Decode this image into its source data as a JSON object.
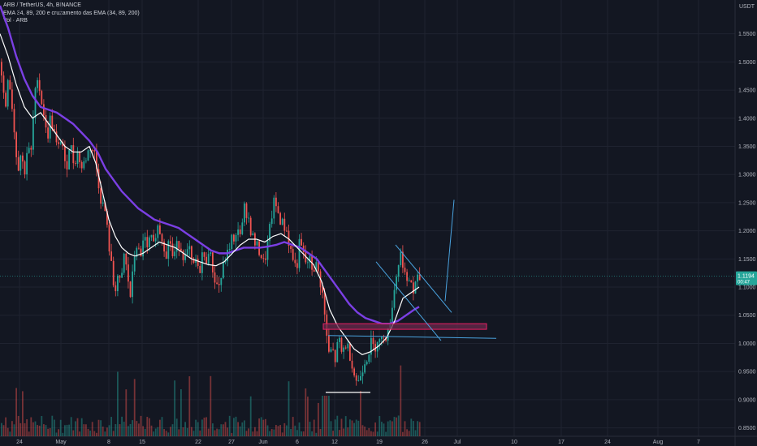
{
  "legend": {
    "symbol_line": "ARB / TetherUS, 4h, BINANCE",
    "indicator_line": "EMA 34, 89, 200 e cruzamento das EMA (34, 89, 200)",
    "volume_line": "Vol · ARB"
  },
  "price_axis": {
    "currency": "USDT",
    "ticks": [
      "1.5500",
      "1.5000",
      "1.4500",
      "1.4000",
      "1.3500",
      "1.3000",
      "1.2500",
      "1.2000",
      "1.1500",
      "1.1000",
      "1.0500",
      "1.0000",
      "0.9500",
      "0.9000",
      "0.8500"
    ],
    "last_price": "1.1194",
    "countdown": "00:47"
  },
  "time_axis": {
    "ticks": [
      "24",
      "May",
      "8",
      "15",
      "22",
      "27",
      "Jun",
      "6",
      "12",
      "19",
      "26",
      "Jul",
      "10",
      "17",
      "24",
      "Aug",
      "7"
    ]
  },
  "colors": {
    "background": "#131722",
    "up": "#26a69a",
    "down": "#ef5350",
    "ema_fast": "#ffffff",
    "ema_slow": "#7b3fe4",
    "drawing_line": "#4aa3df",
    "zone_border": "#e91e63",
    "zone_fill": "#6a2a4c",
    "support_line": "#ffffff",
    "last_price_bg": "#26a69a"
  },
  "chart_data": {
    "type": "candlestick",
    "title": "ARB / TetherUS, 4h, BINANCE",
    "ylim": [
      0.835,
      1.61
    ],
    "y_ticks": [
      1.55,
      1.5,
      1.45,
      1.4,
      1.35,
      1.3,
      1.25,
      1.2,
      1.15,
      1.1,
      1.05,
      1.0,
      0.95,
      0.9,
      0.85
    ],
    "last_price": 1.1194,
    "price_path": [
      [
        0,
        1.5
      ],
      [
        2,
        1.46
      ],
      [
        6,
        1.42
      ],
      [
        9,
        1.48
      ],
      [
        13,
        1.44
      ],
      [
        17,
        1.37
      ],
      [
        21,
        1.31
      ],
      [
        25,
        1.34
      ],
      [
        29,
        1.3
      ],
      [
        33,
        1.35
      ],
      [
        37,
        1.33
      ],
      [
        41,
        1.42
      ],
      [
        45,
        1.48
      ],
      [
        49,
        1.44
      ],
      [
        53,
        1.41
      ],
      [
        57,
        1.36
      ],
      [
        61,
        1.4
      ],
      [
        65,
        1.38
      ],
      [
        70,
        1.34
      ],
      [
        75,
        1.37
      ],
      [
        80,
        1.3
      ],
      [
        85,
        1.36
      ],
      [
        90,
        1.32
      ],
      [
        95,
        1.34
      ],
      [
        100,
        1.31
      ],
      [
        105,
        1.33
      ],
      [
        110,
        1.35
      ],
      [
        115,
        1.34
      ],
      [
        120,
        1.29
      ],
      [
        124,
        1.25
      ],
      [
        128,
        1.24
      ],
      [
        132,
        1.19
      ],
      [
        136,
        1.14
      ],
      [
        140,
        1.09
      ],
      [
        144,
        1.12
      ],
      [
        148,
        1.1
      ],
      [
        152,
        1.16
      ],
      [
        156,
        1.12
      ],
      [
        160,
        1.08
      ],
      [
        164,
        1.15
      ],
      [
        168,
        1.18
      ],
      [
        172,
        1.14
      ],
      [
        176,
        1.2
      ],
      [
        180,
        1.16
      ],
      [
        184,
        1.19
      ],
      [
        188,
        1.17
      ],
      [
        192,
        1.21
      ],
      [
        196,
        1.2
      ],
      [
        200,
        1.18
      ],
      [
        204,
        1.16
      ],
      [
        208,
        1.19
      ],
      [
        212,
        1.15
      ],
      [
        216,
        1.17
      ],
      [
        220,
        1.18
      ],
      [
        224,
        1.16
      ],
      [
        228,
        1.15
      ],
      [
        232,
        1.17
      ],
      [
        236,
        1.13
      ],
      [
        240,
        1.15
      ],
      [
        244,
        1.12
      ],
      [
        248,
        1.16
      ],
      [
        252,
        1.14
      ],
      [
        256,
        1.17
      ],
      [
        260,
        1.14
      ],
      [
        264,
        1.11
      ],
      [
        268,
        1.1
      ],
      [
        272,
        1.12
      ],
      [
        276,
        1.15
      ],
      [
        280,
        1.16
      ],
      [
        284,
        1.19
      ],
      [
        288,
        1.17
      ],
      [
        292,
        1.21
      ],
      [
        296,
        1.19
      ],
      [
        300,
        1.24
      ],
      [
        304,
        1.23
      ],
      [
        308,
        1.2
      ],
      [
        312,
        1.18
      ],
      [
        316,
        1.17
      ],
      [
        320,
        1.16
      ],
      [
        324,
        1.14
      ],
      [
        328,
        1.17
      ],
      [
        332,
        1.21
      ],
      [
        336,
        1.25
      ],
      [
        340,
        1.24
      ],
      [
        344,
        1.22
      ],
      [
        348,
        1.21
      ],
      [
        352,
        1.2
      ],
      [
        356,
        1.17
      ],
      [
        360,
        1.15
      ],
      [
        364,
        1.13
      ],
      [
        368,
        1.18
      ],
      [
        372,
        1.16
      ],
      [
        376,
        1.14
      ],
      [
        380,
        1.15
      ],
      [
        384,
        1.13
      ],
      [
        388,
        1.14
      ],
      [
        392,
        1.12
      ],
      [
        396,
        1.09
      ],
      [
        400,
        1.03
      ],
      [
        404,
        0.98
      ],
      [
        408,
        0.99
      ],
      [
        412,
        0.97
      ],
      [
        416,
        1.01
      ],
      [
        420,
        0.98
      ],
      [
        424,
        1.0
      ],
      [
        428,
        0.99
      ],
      [
        432,
        0.97
      ],
      [
        436,
        0.94
      ],
      [
        440,
        0.93
      ],
      [
        444,
        0.95
      ],
      [
        448,
        0.97
      ],
      [
        452,
        0.98
      ],
      [
        456,
        1.0
      ],
      [
        460,
        0.99
      ],
      [
        464,
        1.01
      ],
      [
        468,
        1.0
      ],
      [
        472,
        1.02
      ],
      [
        476,
        1.01
      ],
      [
        480,
        1.05
      ],
      [
        484,
        1.09
      ],
      [
        488,
        1.13
      ],
      [
        492,
        1.16
      ],
      [
        496,
        1.14
      ],
      [
        500,
        1.1
      ],
      [
        504,
        1.12
      ],
      [
        508,
        1.09
      ],
      [
        512,
        1.11
      ],
      [
        516,
        1.115
      ]
    ],
    "ema_fast": [
      [
        0,
        1.55
      ],
      [
        10,
        1.51
      ],
      [
        20,
        1.46
      ],
      [
        30,
        1.42
      ],
      [
        40,
        1.4
      ],
      [
        50,
        1.41
      ],
      [
        60,
        1.39
      ],
      [
        70,
        1.37
      ],
      [
        80,
        1.35
      ],
      [
        90,
        1.34
      ],
      [
        100,
        1.34
      ],
      [
        110,
        1.35
      ],
      [
        118,
        1.32
      ],
      [
        126,
        1.27
      ],
      [
        134,
        1.22
      ],
      [
        142,
        1.19
      ],
      [
        150,
        1.17
      ],
      [
        158,
        1.16
      ],
      [
        166,
        1.155
      ],
      [
        176,
        1.16
      ],
      [
        186,
        1.17
      ],
      [
        196,
        1.18
      ],
      [
        206,
        1.175
      ],
      [
        216,
        1.17
      ],
      [
        226,
        1.16
      ],
      [
        236,
        1.15
      ],
      [
        246,
        1.145
      ],
      [
        256,
        1.14
      ],
      [
        266,
        1.138
      ],
      [
        276,
        1.145
      ],
      [
        286,
        1.16
      ],
      [
        296,
        1.175
      ],
      [
        306,
        1.185
      ],
      [
        316,
        1.185
      ],
      [
        326,
        1.18
      ],
      [
        336,
        1.19
      ],
      [
        346,
        1.195
      ],
      [
        356,
        1.185
      ],
      [
        366,
        1.17
      ],
      [
        376,
        1.155
      ],
      [
        386,
        1.14
      ],
      [
        396,
        1.11
      ],
      [
        406,
        1.06
      ],
      [
        416,
        1.03
      ],
      [
        426,
        1.01
      ],
      [
        436,
        0.99
      ],
      [
        446,
        0.98
      ],
      [
        456,
        0.985
      ],
      [
        466,
        0.995
      ],
      [
        476,
        1.01
      ],
      [
        486,
        1.04
      ],
      [
        496,
        1.08
      ],
      [
        506,
        1.09
      ],
      [
        516,
        1.1
      ]
    ],
    "ema_slow": [
      [
        0,
        1.6
      ],
      [
        10,
        1.56
      ],
      [
        20,
        1.51
      ],
      [
        30,
        1.47
      ],
      [
        40,
        1.44
      ],
      [
        50,
        1.42
      ],
      [
        60,
        1.415
      ],
      [
        70,
        1.41
      ],
      [
        80,
        1.4
      ],
      [
        90,
        1.39
      ],
      [
        100,
        1.375
      ],
      [
        110,
        1.36
      ],
      [
        120,
        1.34
      ],
      [
        130,
        1.31
      ],
      [
        140,
        1.29
      ],
      [
        150,
        1.27
      ],
      [
        160,
        1.255
      ],
      [
        170,
        1.24
      ],
      [
        180,
        1.23
      ],
      [
        190,
        1.22
      ],
      [
        200,
        1.215
      ],
      [
        210,
        1.21
      ],
      [
        220,
        1.205
      ],
      [
        230,
        1.195
      ],
      [
        240,
        1.185
      ],
      [
        250,
        1.175
      ],
      [
        260,
        1.165
      ],
      [
        270,
        1.16
      ],
      [
        280,
        1.16
      ],
      [
        290,
        1.165
      ],
      [
        300,
        1.17
      ],
      [
        310,
        1.17
      ],
      [
        320,
        1.17
      ],
      [
        330,
        1.172
      ],
      [
        340,
        1.175
      ],
      [
        350,
        1.18
      ],
      [
        360,
        1.175
      ],
      [
        370,
        1.17
      ],
      [
        380,
        1.16
      ],
      [
        390,
        1.15
      ],
      [
        400,
        1.13
      ],
      [
        410,
        1.11
      ],
      [
        420,
        1.09
      ],
      [
        430,
        1.07
      ],
      [
        440,
        1.055
      ],
      [
        450,
        1.045
      ],
      [
        460,
        1.04
      ],
      [
        470,
        1.035
      ],
      [
        480,
        1.035
      ],
      [
        490,
        1.04
      ],
      [
        500,
        1.05
      ],
      [
        510,
        1.06
      ],
      [
        516,
        1.065
      ]
    ],
    "annotations": {
      "resistance_zone": {
        "x": [
          398,
          599
        ],
        "y": [
          1.035,
          1.025
        ]
      },
      "support_line_low": {
        "x": [
          401,
          456
        ],
        "y": 0.913
      },
      "trend_line_long": [
        [
          404,
          1.014
        ],
        [
          611,
          1.009
        ]
      ],
      "channel_upper": [
        [
          487,
          1.175
        ],
        [
          556,
          1.055
        ]
      ],
      "channel_lower": [
        [
          463,
          1.145
        ],
        [
          543,
          1.005
        ]
      ],
      "projection": [
        [
          548,
          1.075
        ],
        [
          559,
          1.255
        ]
      ]
    }
  }
}
